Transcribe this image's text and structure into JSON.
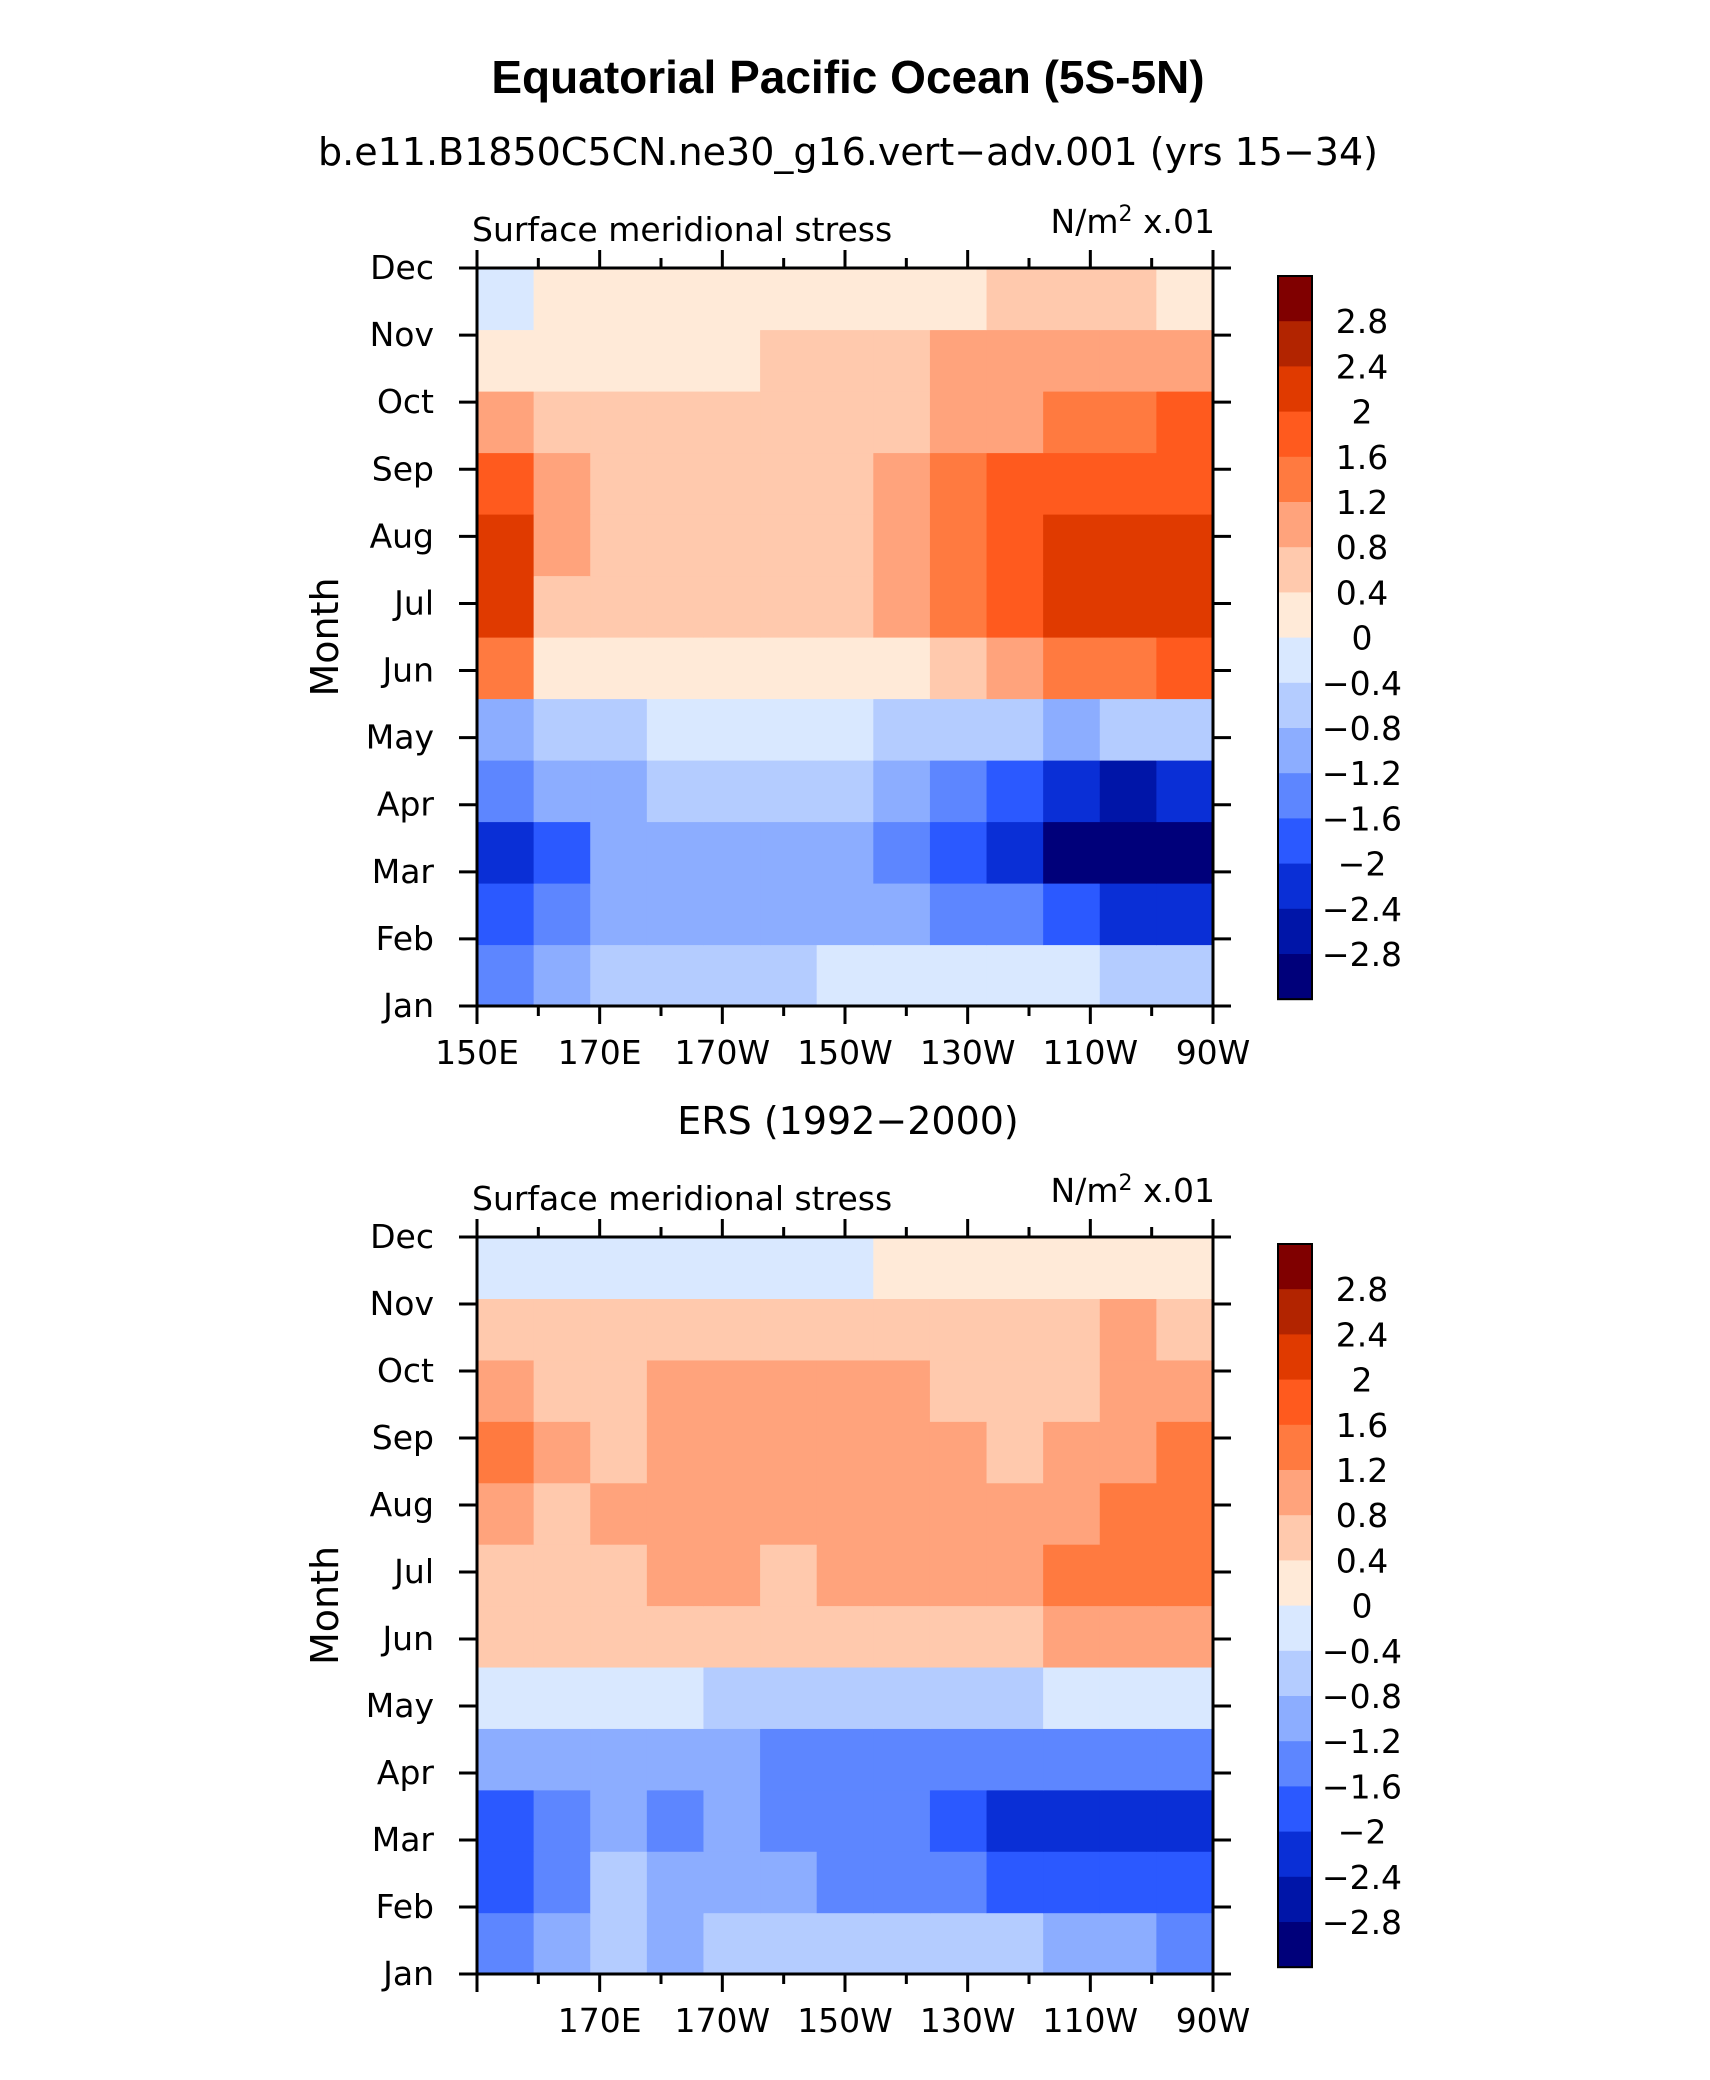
{
  "figure": {
    "title": "Equatorial Pacific Ocean (5S-5N)"
  },
  "colorbar": {
    "levels": [
      2.8,
      2.4,
      2,
      1.6,
      1.2,
      0.8,
      0.4,
      0,
      -0.4,
      -0.8,
      -1.2,
      -1.6,
      -2,
      -2.4,
      -2.8
    ],
    "labels": [
      "2.8",
      "2.4",
      "2",
      "1.6",
      "1.2",
      "0.8",
      "0.4",
      "0",
      "−0.4",
      "−0.8",
      "−1.2",
      "−1.6",
      "−2",
      "−2.4",
      "−2.8"
    ],
    "colors": [
      "#800000",
      "#b22400",
      "#e03a00",
      "#ff5a1e",
      "#ff7a40",
      "#ffa37c",
      "#ffc9ad",
      "#ffead8",
      "#d9e8ff",
      "#b4ccff",
      "#8cadff",
      "#5d86ff",
      "#2b59ff",
      "#0a2fd6",
      "#0015a8",
      "#00007a"
    ]
  },
  "chart_data": [
    {
      "type": "heatmap",
      "subtitle": "b.e11.B1850C5CN.ne30_g16.vert−adv.001 (yrs 15−34)",
      "left_label": "Surface meridional stress",
      "right_label_main": "N/m",
      "right_label_sup": "2",
      "right_label_tail": " x.01",
      "ylabel": "Month",
      "y_ticks": [
        "Jan",
        "Feb",
        "Mar",
        "Apr",
        "May",
        "Jun",
        "Jul",
        "Aug",
        "Sep",
        "Oct",
        "Nov",
        "Dec"
      ],
      "x_ticks": [
        "150E",
        "170E",
        "170W",
        "150W",
        "130W",
        "110W",
        "90W"
      ],
      "x_range": [
        150,
        270
      ],
      "x_lon": [
        150,
        160,
        170,
        180,
        190,
        200,
        210,
        220,
        230,
        240,
        250,
        260,
        270
      ],
      "values": [
        [
          -1.6,
          -1.0,
          -0.8,
          -0.7,
          -0.6,
          -0.5,
          -0.4,
          -0.3,
          -0.3,
          -0.3,
          -0.4,
          -0.5,
          -0.5
        ],
        [
          -2.0,
          -1.3,
          -1.1,
          -1.0,
          -1.0,
          -1.0,
          -1.0,
          -1.1,
          -1.3,
          -1.6,
          -1.9,
          -2.2,
          -2.3
        ],
        [
          -2.2,
          -1.8,
          -1.2,
          -1.2,
          -1.2,
          -1.2,
          -1.2,
          -1.3,
          -1.8,
          -2.4,
          -2.9,
          -3.1,
          -3.1
        ],
        [
          -1.4,
          -1.2,
          -1.0,
          -0.8,
          -0.7,
          -0.7,
          -0.8,
          -1.0,
          -1.5,
          -2.0,
          -2.3,
          -2.5,
          -2.4
        ],
        [
          -0.9,
          -0.7,
          -0.5,
          -0.4,
          -0.3,
          -0.3,
          -0.4,
          -0.5,
          -0.7,
          -0.8,
          -0.9,
          -0.8,
          -0.6
        ],
        [
          1.5,
          0.1,
          0.2,
          0.3,
          0.2,
          0.2,
          0.2,
          0.3,
          0.6,
          1.0,
          1.3,
          1.5,
          1.7
        ],
        [
          2.2,
          0.6,
          0.4,
          0.4,
          0.5,
          0.5,
          0.6,
          0.9,
          1.4,
          1.9,
          2.1,
          2.3,
          2.3
        ],
        [
          2.3,
          0.9,
          0.5,
          0.5,
          0.5,
          0.5,
          0.6,
          0.9,
          1.4,
          1.8,
          2.0,
          2.2,
          2.2
        ],
        [
          1.6,
          0.8,
          0.6,
          0.6,
          0.6,
          0.6,
          0.6,
          0.8,
          1.3,
          1.6,
          1.8,
          1.9,
          1.9
        ],
        [
          1.0,
          0.7,
          0.6,
          0.5,
          0.5,
          0.5,
          0.6,
          0.7,
          0.9,
          1.1,
          1.3,
          1.5,
          1.6
        ],
        [
          0.1,
          0.3,
          0.3,
          0.3,
          0.3,
          0.4,
          0.5,
          0.6,
          0.8,
          1.0,
          1.1,
          1.1,
          1.0
        ],
        [
          -0.3,
          0.2,
          0.3,
          0.2,
          0.2,
          0.2,
          0.2,
          0.3,
          0.3,
          0.4,
          0.4,
          0.4,
          0.3
        ]
      ]
    },
    {
      "type": "heatmap",
      "subtitle": "ERS (1992−2000)",
      "left_label": "Surface meridional stress",
      "right_label_main": "N/m",
      "right_label_sup": "2",
      "right_label_tail": " x.01",
      "ylabel": "Month",
      "y_ticks": [
        "Jan",
        "Feb",
        "Mar",
        "Apr",
        "May",
        "Jun",
        "Jul",
        "Aug",
        "Sep",
        "Oct",
        "Nov",
        "Dec"
      ],
      "x_ticks": [
        "170E",
        "170W",
        "150W",
        "130W",
        "110W",
        "90W"
      ],
      "x_range": [
        150,
        270
      ],
      "x_lon": [
        150,
        160,
        170,
        180,
        190,
        200,
        210,
        220,
        230,
        240,
        250,
        260,
        270
      ],
      "values": [
        [
          -1.3,
          -1.0,
          -0.7,
          -0.9,
          -0.6,
          -0.8,
          -0.8,
          -0.7,
          -0.8,
          -0.8,
          -0.9,
          -1.0,
          -1.3
        ],
        [
          -1.8,
          -1.3,
          -0.8,
          -1.2,
          -0.9,
          -1.2,
          -1.3,
          -1.3,
          -1.6,
          -1.7,
          -1.8,
          -2.0,
          -2.0
        ],
        [
          -2.0,
          -1.4,
          -0.9,
          -1.3,
          -1.1,
          -1.3,
          -1.3,
          -1.6,
          -1.8,
          -2.1,
          -2.2,
          -2.3,
          -2.2
        ],
        [
          -1.0,
          -0.9,
          -0.9,
          -1.1,
          -1.2,
          -1.3,
          -1.4,
          -1.4,
          -1.5,
          -1.6,
          -1.6,
          -1.5,
          -1.3
        ],
        [
          -0.2,
          -0.3,
          -0.4,
          -0.4,
          -0.5,
          -0.5,
          -0.6,
          -0.6,
          -0.6,
          -0.5,
          -0.4,
          -0.3,
          -0.2
        ],
        [
          0.4,
          0.5,
          0.5,
          0.6,
          0.5,
          0.6,
          0.6,
          0.6,
          0.5,
          0.6,
          0.8,
          1.1,
          0.9
        ],
        [
          0.7,
          0.6,
          0.7,
          0.8,
          0.8,
          0.7,
          0.9,
          0.9,
          0.8,
          0.8,
          1.2,
          1.3,
          1.2
        ],
        [
          1.0,
          0.7,
          0.8,
          0.9,
          1.0,
          0.9,
          1.0,
          1.0,
          1.0,
          0.8,
          1.1,
          1.2,
          1.3
        ],
        [
          1.3,
          0.8,
          0.6,
          0.9,
          1.0,
          0.9,
          1.0,
          1.0,
          1.0,
          0.7,
          0.9,
          1.0,
          1.2
        ],
        [
          0.8,
          0.7,
          0.6,
          0.8,
          0.9,
          0.8,
          0.9,
          0.8,
          0.7,
          0.6,
          0.7,
          0.8,
          1.1
        ],
        [
          0.4,
          0.5,
          0.4,
          0.5,
          0.6,
          0.5,
          0.5,
          0.6,
          0.5,
          0.5,
          0.7,
          0.8,
          0.7
        ],
        [
          -0.1,
          -0.2,
          -0.3,
          -0.1,
          -0.2,
          -0.3,
          -0.1,
          0.1,
          0.2,
          0.3,
          0.3,
          0.2,
          0.1
        ]
      ]
    }
  ]
}
